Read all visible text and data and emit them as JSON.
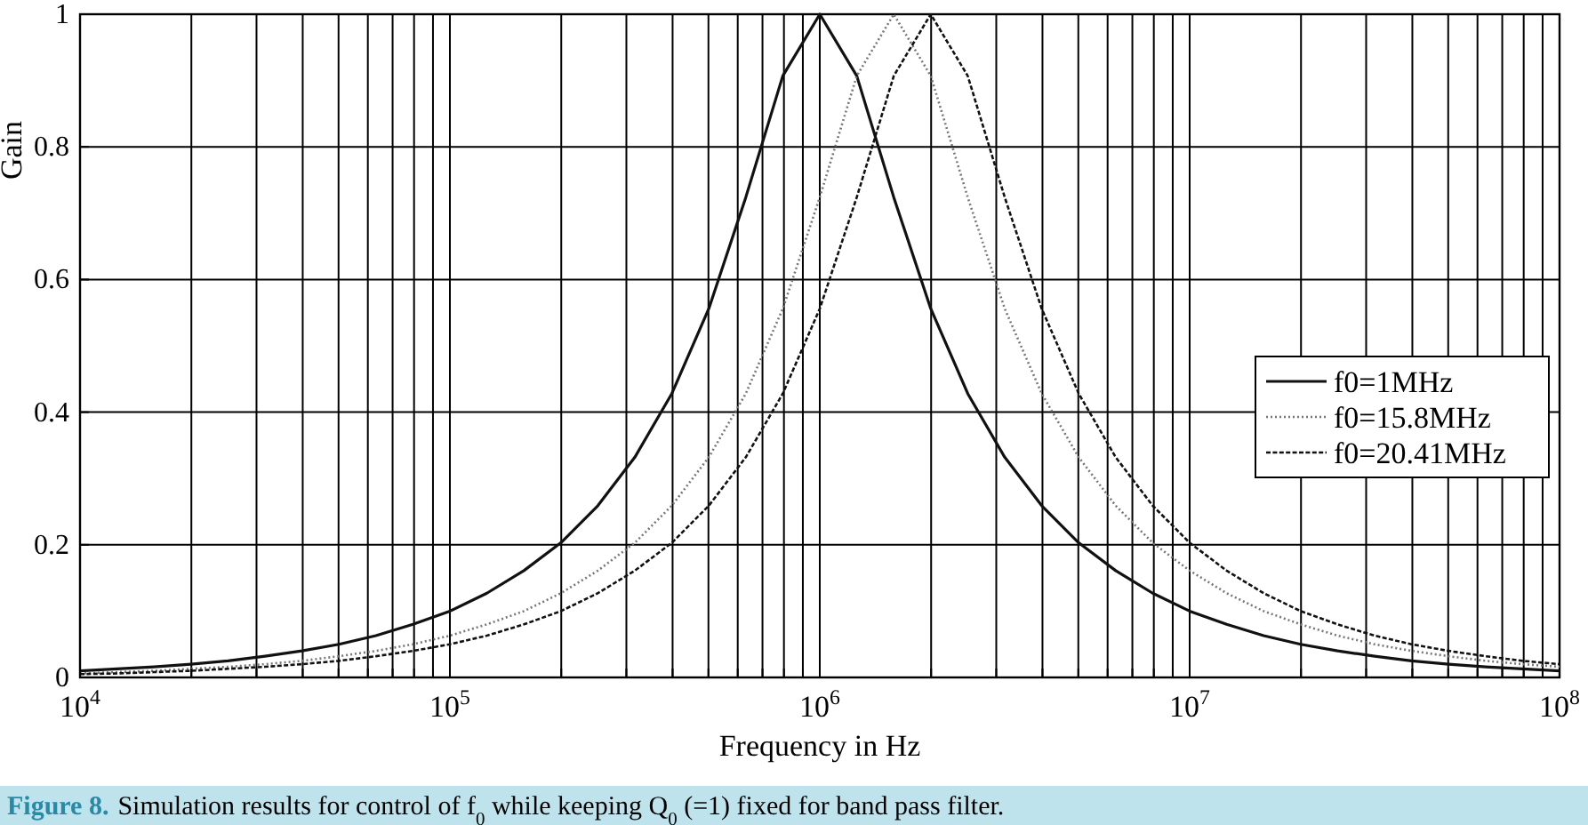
{
  "chart_data": {
    "type": "line",
    "xlabel": "Frequency in Hz",
    "ylabel": "Gain",
    "annotations": [
      "Figure 8.",
      "Simulation results for control of f$_{0}$ while keeping Q$_{0}$ (=1) fixed for band pass filter."
    ],
    "log": "x",
    "xlim": [
      10000,
      100000000
    ],
    "ylim": [
      0,
      1
    ],
    "xticks": [
      {
        "value": 10000,
        "label": "10$^{4}$"
      },
      {
        "value": 20000,
        "label": null
      },
      {
        "value": 30000,
        "label": null
      },
      {
        "value": 40000,
        "label": null
      },
      {
        "value": 50000,
        "label": null
      },
      {
        "value": 60000,
        "label": null
      },
      {
        "value": 70000,
        "label": null
      },
      {
        "value": 80000,
        "label": null
      },
      {
        "value": 90000,
        "label": null
      },
      {
        "value": 100000,
        "label": "10$^{5}$"
      },
      {
        "value": 200000,
        "label": null
      },
      {
        "value": 300000,
        "label": null
      },
      {
        "value": 400000,
        "label": null
      },
      {
        "value": 500000,
        "label": null
      },
      {
        "value": 600000,
        "label": null
      },
      {
        "value": 700000,
        "label": null
      },
      {
        "value": 800000,
        "label": null
      },
      {
        "value": 900000,
        "label": null
      },
      {
        "value": 1000000,
        "label": "10$^{6}$"
      },
      {
        "value": 2000000,
        "label": null
      },
      {
        "value": 3000000,
        "label": null
      },
      {
        "value": 4000000,
        "label": null
      },
      {
        "value": 5000000,
        "label": null
      },
      {
        "value": 6000000,
        "label": null
      },
      {
        "value": 7000000,
        "label": null
      },
      {
        "value": 8000000,
        "label": null
      },
      {
        "value": 9000000,
        "label": null
      },
      {
        "value": 10000000,
        "label": "10$^{7}$"
      },
      {
        "value": 20000000,
        "label": null
      },
      {
        "value": 30000000,
        "label": null
      },
      {
        "value": 40000000,
        "label": null
      },
      {
        "value": 50000000,
        "label": null
      },
      {
        "value": 60000000,
        "label": null
      },
      {
        "value": 70000000,
        "label": null
      },
      {
        "value": 80000000,
        "label": null
      },
      {
        "value": 90000000,
        "label": null
      },
      {
        "value": 100000000,
        "label": "10$^{8}$"
      }
    ],
    "yticks": [
      0,
      0.2,
      0.4,
      0.6,
      0.8,
      1
    ],
    "grid": true,
    "legend": "right",
    "marker": "none",
    "x": [
      10000,
      12589,
      15849,
      19953,
      25119,
      31623,
      39811,
      50119,
      63096,
      79433,
      100000,
      125893,
      158489,
      199526,
      251189,
      316228,
      398107,
      501187,
      630957,
      794328,
      1000000,
      1258925,
      1584893,
      1995262,
      2511886,
      3162278,
      3981072,
      5011872,
      6309573,
      7943282,
      10000000,
      12589254,
      15848932,
      19952623,
      25118864,
      31622777,
      39810717,
      50118723,
      63095734,
      79432823,
      100000000
    ],
    "series": [
      {
        "name": "f0=1MHz",
        "color": "#111111",
        "line_style": "solid",
        "values": [
          0.01,
          0.013,
          0.016,
          0.02,
          0.025,
          0.032,
          0.04,
          0.05,
          0.063,
          0.08,
          0.1,
          0.127,
          0.161,
          0.203,
          0.259,
          0.332,
          0.428,
          0.556,
          0.724,
          0.907,
          1,
          0.907,
          0.724,
          0.556,
          0.428,
          0.332,
          0.259,
          0.203,
          0.161,
          0.127,
          0.1,
          0.08,
          0.063,
          0.05,
          0.04,
          0.032,
          0.025,
          0.02,
          0.016,
          0.013,
          0.01
        ]
      },
      {
        "name": "f0=15.8MHz",
        "color": "#777777",
        "line_style": "dotted",
        "values": [
          0.006,
          0.008,
          0.01,
          0.013,
          0.016,
          0.02,
          0.025,
          0.032,
          0.04,
          0.05,
          0.063,
          0.08,
          0.1,
          0.127,
          0.161,
          0.203,
          0.259,
          0.332,
          0.428,
          0.556,
          0.724,
          0.907,
          1,
          0.907,
          0.724,
          0.556,
          0.428,
          0.332,
          0.259,
          0.203,
          0.161,
          0.127,
          0.1,
          0.08,
          0.063,
          0.05,
          0.04,
          0.032,
          0.025,
          0.02,
          0.016
        ]
      },
      {
        "name": "f0=20.41MHz",
        "color": "#111111",
        "line_style": "dashed",
        "values": [
          0.005,
          0.006,
          0.008,
          0.01,
          0.013,
          0.016,
          0.02,
          0.025,
          0.032,
          0.04,
          0.05,
          0.063,
          0.08,
          0.1,
          0.127,
          0.161,
          0.203,
          0.259,
          0.332,
          0.428,
          0.556,
          0.724,
          0.907,
          1,
          0.907,
          0.724,
          0.556,
          0.428,
          0.332,
          0.259,
          0.203,
          0.161,
          0.127,
          0.1,
          0.08,
          0.063,
          0.05,
          0.04,
          0.032,
          0.025,
          0.02
        ]
      }
    ]
  }
}
